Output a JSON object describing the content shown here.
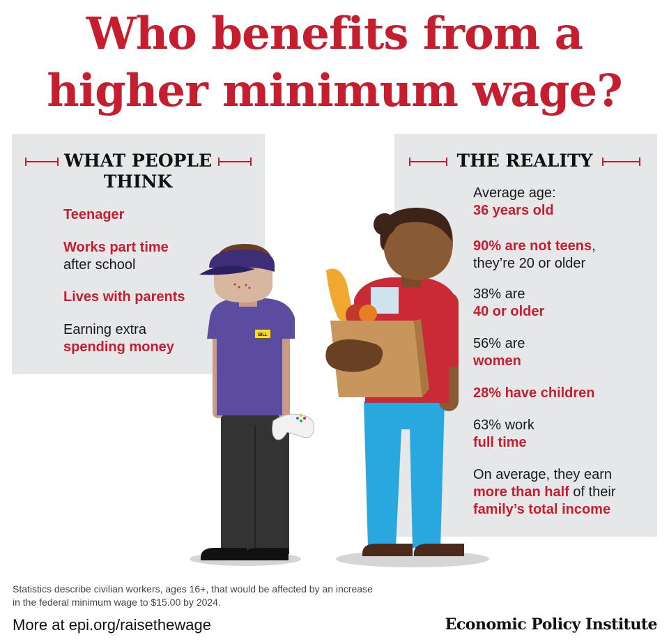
{
  "title": {
    "line1": "Who benefits from a",
    "line2": "higher minimum wage?"
  },
  "colors": {
    "accent": "#c41e2f",
    "panel": "#e6e7e8"
  },
  "left_panel": {
    "heading_line1": "WHAT PEOPLE",
    "heading_line2": "THINK",
    "items": [
      {
        "red": "Teenager"
      },
      {
        "red": "Works part time",
        "black": "after school"
      },
      {
        "red": "Lives with parents"
      },
      {
        "black": "Earning extra",
        "red": "spending money"
      }
    ]
  },
  "right_panel": {
    "heading": "THE REALITY",
    "items": [
      {
        "black": "Average age:",
        "red": "36 years old"
      },
      {
        "red": "90% are not teens",
        "black_inline": ",",
        "black": "they’re 20 or older"
      },
      {
        "black": "38% are",
        "red": "40 or older"
      },
      {
        "black": "56% are",
        "red": "women"
      },
      {
        "red": "28% have children"
      },
      {
        "black": "63% work",
        "red": "full time"
      },
      {
        "black": "On average, they earn",
        "red_inline": "more than half",
        "black_inline": " of their",
        "red": "family’s total income"
      }
    ]
  },
  "illustration": {
    "name_tag": "BILL"
  },
  "footnote": "Statistics describe civilian workers, ages 16+, that would be affected by an increase in the federal minimum wage to $15.00 by 2024.",
  "more_link": "More at epi.org/raisethewage",
  "logo": "Economic Policy Institute"
}
